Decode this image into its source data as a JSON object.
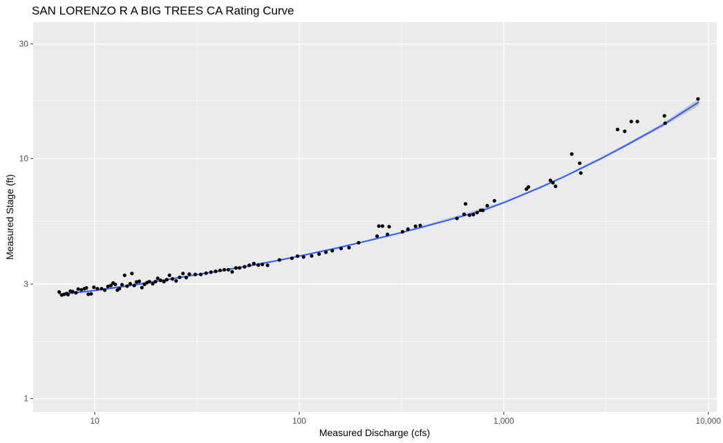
{
  "chart_data": {
    "type": "scatter",
    "title": "SAN LORENZO R A BIG TREES CA Rating Curve",
    "xlabel": "Measured Discharge (cfs)",
    "ylabel": "Measured Stage (ft)",
    "x_scale": "log10",
    "y_scale": "log10",
    "xlim": [
      5,
      11000
    ],
    "ylim": [
      0.88,
      37
    ],
    "x_ticks": [
      {
        "value": 10,
        "label": "10"
      },
      {
        "value": 100,
        "label": "100"
      },
      {
        "value": 1000,
        "label": "1,000"
      },
      {
        "value": 10000,
        "label": "10,000"
      }
    ],
    "y_ticks": [
      {
        "value": 1,
        "label": "1"
      },
      {
        "value": 3,
        "label": "3"
      },
      {
        "value": 10,
        "label": "10"
      },
      {
        "value": 30,
        "label": "30"
      }
    ],
    "grid": true,
    "colors": {
      "panel": "#ebebeb",
      "grid_major": "#ffffff",
      "point": "#000000",
      "fit_line": "#3366ff",
      "confidence_band": "#b3b3b3"
    },
    "series": [
      {
        "kind": "points",
        "points": [
          [
            6.7,
            2.78
          ],
          [
            6.9,
            2.7
          ],
          [
            7.1,
            2.72
          ],
          [
            7.3,
            2.74
          ],
          [
            7.4,
            2.71
          ],
          [
            7.6,
            2.8
          ],
          [
            7.8,
            2.79
          ],
          [
            8.1,
            2.76
          ],
          [
            8.3,
            2.86
          ],
          [
            8.6,
            2.84
          ],
          [
            8.9,
            2.87
          ],
          [
            9.1,
            2.89
          ],
          [
            9.3,
            2.72
          ],
          [
            9.6,
            2.73
          ],
          [
            9.9,
            2.91
          ],
          [
            10.3,
            2.87
          ],
          [
            10.8,
            2.87
          ],
          [
            11.2,
            2.83
          ],
          [
            11.6,
            2.93
          ],
          [
            12.0,
            2.96
          ],
          [
            12.3,
            3.03
          ],
          [
            12.6,
            2.99
          ],
          [
            12.9,
            2.83
          ],
          [
            13.2,
            2.87
          ],
          [
            13.6,
            2.98
          ],
          [
            14.0,
            3.26
          ],
          [
            14.4,
            2.94
          ],
          [
            14.9,
            3.01
          ],
          [
            15.2,
            3.32
          ],
          [
            15.6,
            2.96
          ],
          [
            16.0,
            3.06
          ],
          [
            16.5,
            3.08
          ],
          [
            17.0,
            2.9
          ],
          [
            17.5,
            2.99
          ],
          [
            18.0,
            3.04
          ],
          [
            18.5,
            3.07
          ],
          [
            19.2,
            3.01
          ],
          [
            19.8,
            3.07
          ],
          [
            20.3,
            3.17
          ],
          [
            21.0,
            3.11
          ],
          [
            21.8,
            3.07
          ],
          [
            22.5,
            3.13
          ],
          [
            23.2,
            3.26
          ],
          [
            24.0,
            3.15
          ],
          [
            25.0,
            3.09
          ],
          [
            26.0,
            3.2
          ],
          [
            27.0,
            3.32
          ],
          [
            28.0,
            3.19
          ],
          [
            29.0,
            3.3
          ],
          [
            31.0,
            3.29
          ],
          [
            33.0,
            3.29
          ],
          [
            35.0,
            3.33
          ],
          [
            37.0,
            3.36
          ],
          [
            39.0,
            3.39
          ],
          [
            41.0,
            3.42
          ],
          [
            43.0,
            3.44
          ],
          [
            45.0,
            3.44
          ],
          [
            47.0,
            3.37
          ],
          [
            49.0,
            3.5
          ],
          [
            51.0,
            3.5
          ],
          [
            54.0,
            3.54
          ],
          [
            57.0,
            3.59
          ],
          [
            60.0,
            3.65
          ],
          [
            63.0,
            3.6
          ],
          [
            66.0,
            3.62
          ],
          [
            70.0,
            3.59
          ],
          [
            80.0,
            3.78
          ],
          [
            92.0,
            3.84
          ],
          [
            98.0,
            3.92
          ],
          [
            105.0,
            3.89
          ],
          [
            115.0,
            3.93
          ],
          [
            125.0,
            4.0
          ],
          [
            135.0,
            4.07
          ],
          [
            145.0,
            4.13
          ],
          [
            160.0,
            4.22
          ],
          [
            175.0,
            4.25
          ],
          [
            195.0,
            4.46
          ],
          [
            240.0,
            4.75
          ],
          [
            245.0,
            5.23
          ],
          [
            255.0,
            5.23
          ],
          [
            270.0,
            4.83
          ],
          [
            275.0,
            5.2
          ],
          [
            320.0,
            4.95
          ],
          [
            340.0,
            5.08
          ],
          [
            370.0,
            5.22
          ],
          [
            390.0,
            5.26
          ],
          [
            590.0,
            5.63
          ],
          [
            640.0,
            5.86
          ],
          [
            650.0,
            6.47
          ],
          [
            680.0,
            5.81
          ],
          [
            710.0,
            5.84
          ],
          [
            740.0,
            5.95
          ],
          [
            770.0,
            6.09
          ],
          [
            790.0,
            6.08
          ],
          [
            830.0,
            6.36
          ],
          [
            900.0,
            6.67
          ],
          [
            1290.0,
            7.46
          ],
          [
            1320.0,
            7.61
          ],
          [
            1690.0,
            8.11
          ],
          [
            1740.0,
            7.93
          ],
          [
            1790.0,
            7.66
          ],
          [
            2150.0,
            10.44
          ],
          [
            2350.0,
            9.56
          ],
          [
            2380.0,
            8.7
          ],
          [
            3600.0,
            13.21
          ],
          [
            3900.0,
            12.98
          ],
          [
            4200.0,
            14.25
          ],
          [
            4500.0,
            14.25
          ],
          [
            6100.0,
            15.06
          ],
          [
            6150.0,
            14.04
          ],
          [
            8900.0,
            17.7
          ]
        ]
      },
      {
        "kind": "fit_line",
        "points": [
          [
            6.7,
            2.72
          ],
          [
            8,
            2.76
          ],
          [
            10,
            2.82
          ],
          [
            13,
            2.91
          ],
          [
            17,
            3.01
          ],
          [
            22,
            3.12
          ],
          [
            30,
            3.26
          ],
          [
            40,
            3.39
          ],
          [
            55,
            3.55
          ],
          [
            75,
            3.73
          ],
          [
            100,
            3.92
          ],
          [
            150,
            4.22
          ],
          [
            200,
            4.47
          ],
          [
            300,
            4.86
          ],
          [
            400,
            5.18
          ],
          [
            600,
            5.69
          ],
          [
            800,
            6.1
          ],
          [
            1000,
            6.55
          ],
          [
            1500,
            7.56
          ],
          [
            2000,
            8.45
          ],
          [
            3000,
            10.0
          ],
          [
            4000,
            11.4
          ],
          [
            6000,
            13.8
          ],
          [
            9000,
            17.2
          ]
        ],
        "band": [
          [
            6.7,
            2.69,
            2.75
          ],
          [
            10,
            2.8,
            2.84
          ],
          [
            30,
            3.24,
            3.28
          ],
          [
            100,
            3.9,
            3.94
          ],
          [
            300,
            4.84,
            4.88
          ],
          [
            1000,
            6.5,
            6.6
          ],
          [
            2000,
            8.38,
            8.52
          ],
          [
            4000,
            11.25,
            11.55
          ],
          [
            6000,
            13.55,
            14.05
          ],
          [
            9000,
            16.6,
            17.8
          ]
        ]
      }
    ]
  }
}
